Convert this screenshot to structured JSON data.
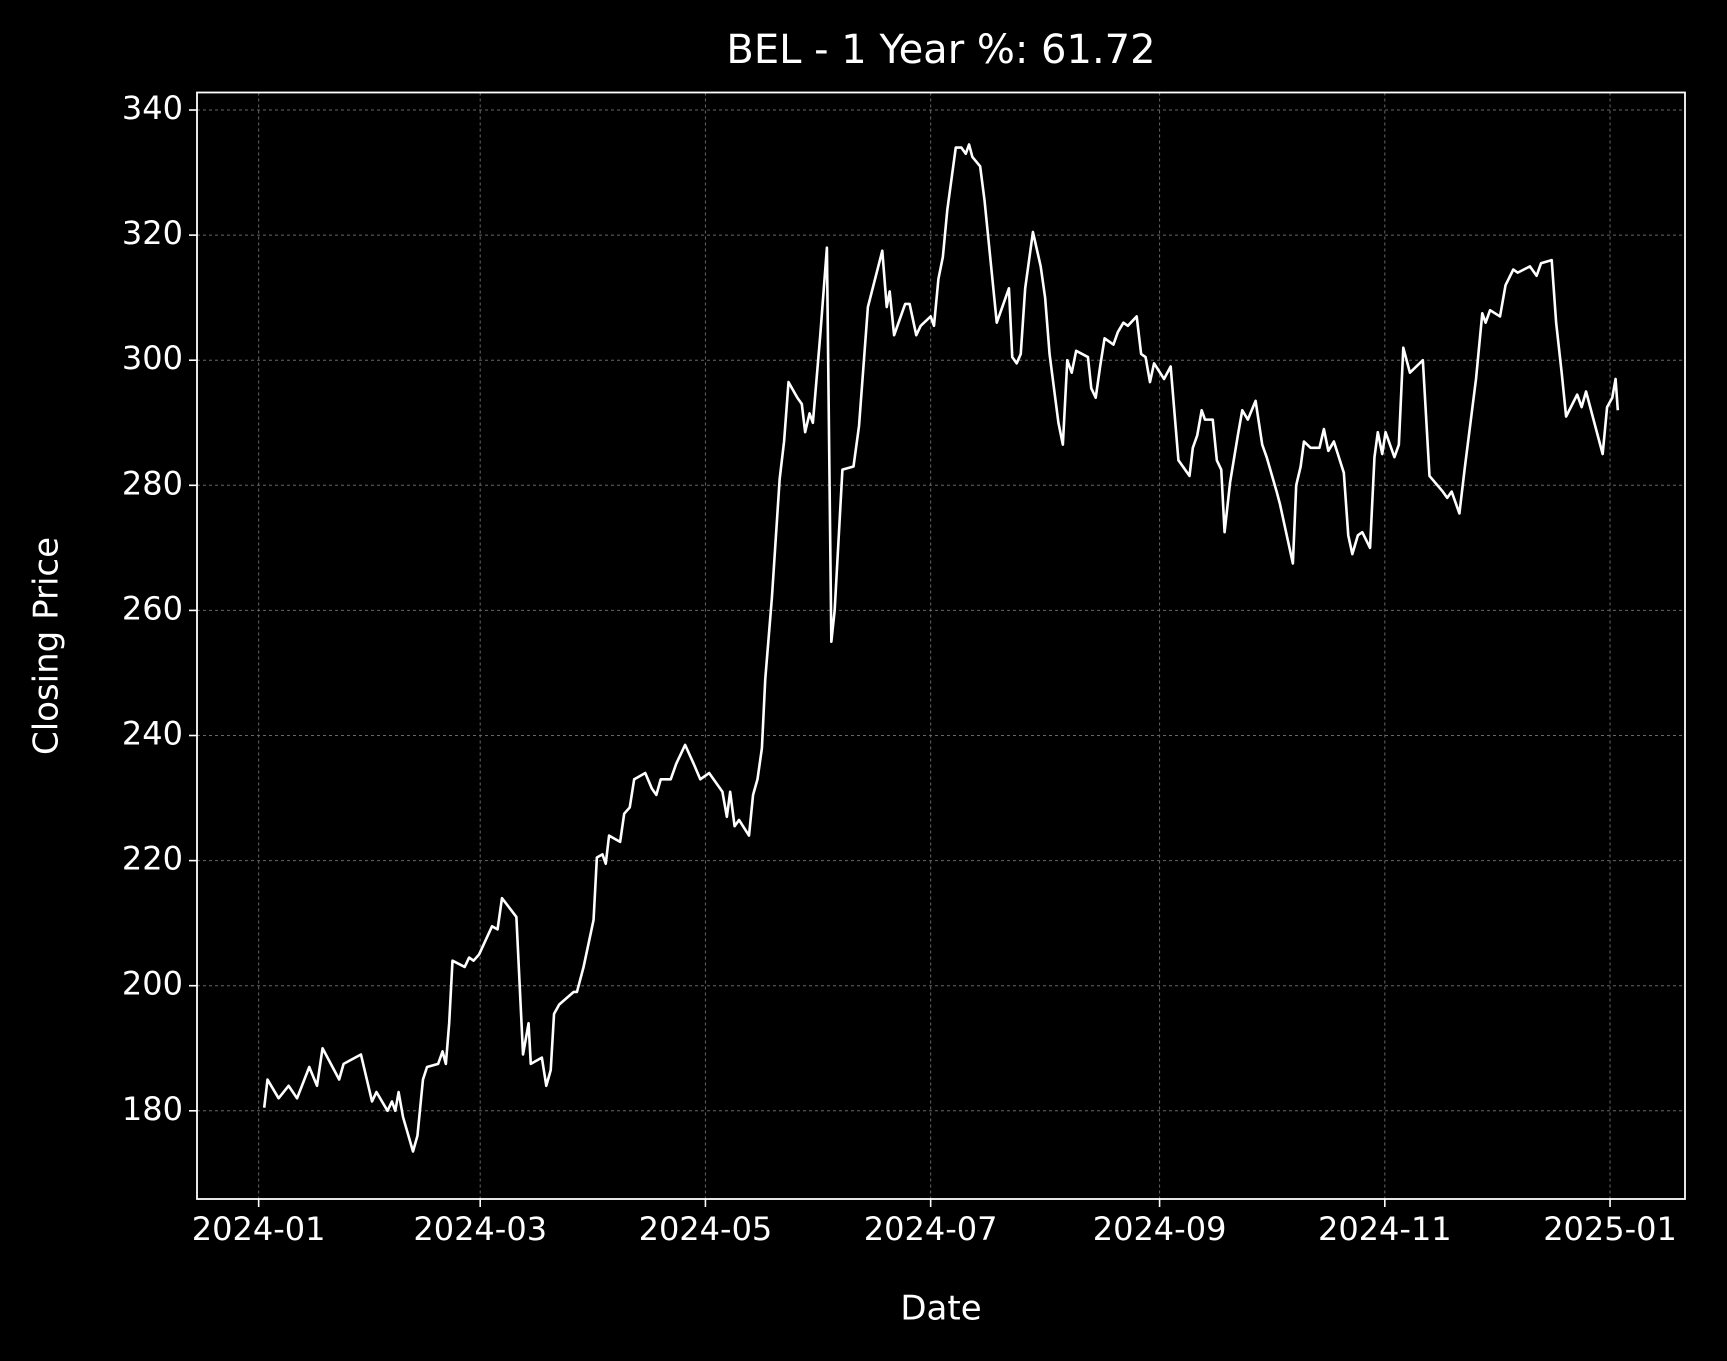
{
  "chart_data": {
    "type": "line",
    "title": "BEL - 1 Year %: 61.72",
    "x_label": "Date",
    "y_label": "Closing Price",
    "color": "#ffffff",
    "grid": true,
    "xlim": [
      -16.7,
      386.3
    ],
    "ylim": [
      165.9,
      342.8
    ],
    "xticks": [
      {
        "value": 0,
        "label": "2024-01"
      },
      {
        "value": 60,
        "label": "2024-03"
      },
      {
        "value": 121,
        "label": "2024-05"
      },
      {
        "value": 182,
        "label": "2024-07"
      },
      {
        "value": 244,
        "label": "2024-09"
      },
      {
        "value": 305,
        "label": "2024-11"
      },
      {
        "value": 366,
        "label": "2025-01"
      }
    ],
    "yticks": [
      180,
      200,
      220,
      240,
      260,
      280,
      300,
      320,
      340
    ],
    "x": [
      1.5,
      2.4,
      5.4,
      8.1,
      10.4,
      13.7,
      15.8,
      17.3,
      21.8,
      23.0,
      27.7,
      30.7,
      31.9,
      34.9,
      36.1,
      37.0,
      37.9,
      39.1,
      41.8,
      43.0,
      44.5,
      45.6,
      48.6,
      49.8,
      50.7,
      51.6,
      52.5,
      55.8,
      57.0,
      58.2,
      59.7,
      63.2,
      64.7,
      65.9,
      69.8,
      71.6,
      73.1,
      73.7,
      76.7,
      77.9,
      79.1,
      80.0,
      81.4,
      85.3,
      86.2,
      88.0,
      90.7,
      91.6,
      93.1,
      94.0,
      94.9,
      97.9,
      99.0,
      100.5,
      101.7,
      104.7,
      106.5,
      107.7,
      108.9,
      111.6,
      113.1,
      115.5,
      117.8,
      119.6,
      122.0,
      125.6,
      126.8,
      127.7,
      128.9,
      130.1,
      132.8,
      133.9,
      135.1,
      136.3,
      137.2,
      139.0,
      141.1,
      142.3,
      143.5,
      145.9,
      147.1,
      148.0,
      149.2,
      150.1,
      152.1,
      153.9,
      155.1,
      156.0,
      158.1,
      161.1,
      162.6,
      165.0,
      168.9,
      170.1,
      170.9,
      172.1,
      175.1,
      176.3,
      178.1,
      179.3,
      182.0,
      182.9,
      184.1,
      185.3,
      186.5,
      188.8,
      190.3,
      191.5,
      192.4,
      193.3,
      195.4,
      196.6,
      199.9,
      203.2,
      204.1,
      205.3,
      206.4,
      207.6,
      209.7,
      211.8,
      213.0,
      214.2,
      216.6,
      217.8,
      219.0,
      220.2,
      221.4,
      224.6,
      225.5,
      226.7,
      227.9,
      229.1,
      231.5,
      232.7,
      234.2,
      235.4,
      237.8,
      239.0,
      240.2,
      241.4,
      242.5,
      245.2,
      247.0,
      249.1,
      252.1,
      253.0,
      254.2,
      255.4,
      256.3,
      258.4,
      259.5,
      260.7,
      261.6,
      263.1,
      265.2,
      266.4,
      267.9,
      270.0,
      271.8,
      273.0,
      275.7,
      276.6,
      280.1,
      281.0,
      282.2,
      283.1,
      284.9,
      287.3,
      288.5,
      289.7,
      291.2,
      293.9,
      295.1,
      296.2,
      297.7,
      298.9,
      301.0,
      302.2,
      303.1,
      304.3,
      305.2,
      307.6,
      308.8,
      310.0,
      311.8,
      315.3,
      317.1,
      320.7,
      321.9,
      323.1,
      325.2,
      326.7,
      329.7,
      331.4,
      332.3,
      333.5,
      336.2,
      337.7,
      339.8,
      341.0,
      344.3,
      346.1,
      347.3,
      350.2,
      351.4,
      352.9,
      354.1,
      357.1,
      358.3,
      359.5,
      364.0,
      365.2,
      366.6,
      367.5,
      368.1
    ],
    "values": [
      180.5,
      185,
      182,
      184,
      182,
      187,
      184,
      190,
      185,
      187.5,
      189,
      181.5,
      183,
      180,
      181.5,
      180,
      183,
      179,
      173.5,
      176,
      185,
      187,
      187.5,
      189.5,
      187.5,
      194,
      204,
      203,
      204.5,
      204,
      205,
      209.5,
      209,
      214,
      211,
      189,
      194,
      187.5,
      188.5,
      184,
      186.5,
      195.5,
      197,
      199,
      199,
      203,
      210.5,
      220.5,
      221,
      219.5,
      224,
      223,
      227.5,
      228.5,
      233,
      234,
      231.5,
      230.5,
      233,
      233,
      235.5,
      238.5,
      235.5,
      233,
      234,
      231,
      227,
      231,
      225.5,
      226.5,
      224,
      230.5,
      233,
      238,
      249,
      262,
      281,
      287,
      296.5,
      294,
      293,
      288.5,
      291.5,
      290,
      304,
      318,
      255,
      260,
      282.5,
      283,
      289.5,
      308.5,
      317.5,
      308.5,
      311,
      304,
      309,
      309,
      304,
      305.5,
      307,
      305.5,
      313,
      316.5,
      324,
      334,
      334,
      333,
      334.5,
      332.5,
      331,
      325.5,
      306,
      311.5,
      300.5,
      299.5,
      301,
      311.5,
      320.5,
      315,
      310,
      301,
      290,
      286.5,
      300,
      298,
      301.5,
      300.5,
      295.5,
      294,
      299,
      303.5,
      302.5,
      304.5,
      306,
      305.5,
      307,
      301,
      300.5,
      296.5,
      299.5,
      297,
      299,
      284,
      281.5,
      286,
      288,
      292,
      290.5,
      290.5,
      284,
      282.5,
      272.5,
      280.5,
      288,
      292,
      290.5,
      293.5,
      286.5,
      284.5,
      279,
      277,
      267.5,
      280,
      283,
      287,
      286,
      286,
      289,
      285.5,
      287,
      282,
      272,
      269,
      272,
      272.5,
      270,
      284.5,
      288.5,
      285,
      288.5,
      284.5,
      286.5,
      302,
      298,
      300,
      281.5,
      279,
      278,
      279,
      275.5,
      283,
      297,
      307.5,
      306,
      308,
      307,
      312,
      314.5,
      314,
      315,
      313.5,
      315.5,
      316,
      306,
      298,
      291,
      294.5,
      292.5,
      295,
      285,
      292.5,
      294,
      297,
      292
    ]
  }
}
